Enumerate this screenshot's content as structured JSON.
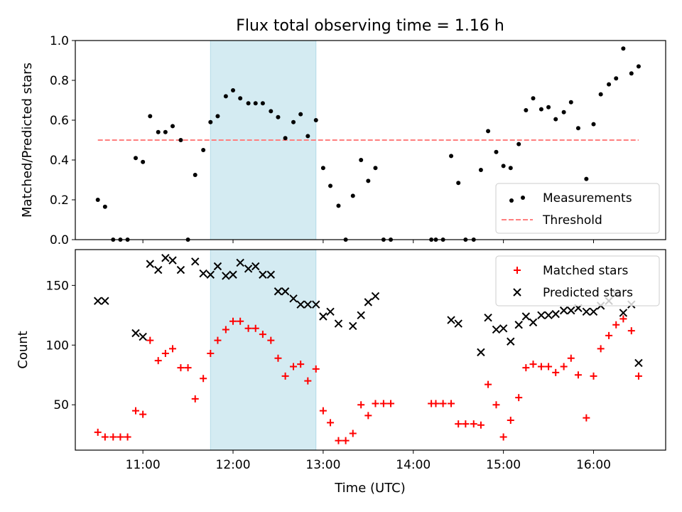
{
  "chart_data": [
    {
      "type": "scatter",
      "title": "Flux total observing time = 1.16 h",
      "xlabel": "",
      "ylabel": "Matched/Predicted stars",
      "xlim": [
        10.25,
        16.8
      ],
      "ylim": [
        0,
        1.0
      ],
      "yticks": [
        0.0,
        0.2,
        0.4,
        0.6,
        0.8,
        1.0
      ],
      "ytick_labels": [
        "0.0",
        "0.2",
        "0.4",
        "0.6",
        "0.8",
        "1.0"
      ],
      "shaded_span": {
        "x0": 11.75,
        "x1": 12.92,
        "color": "#add8e6"
      },
      "threshold": {
        "name": "Threshold",
        "y": 0.5,
        "x0": 10.5,
        "x1": 16.5,
        "color": "#ff7f7f"
      },
      "legend": {
        "position": "lower-right",
        "entries": [
          "Measurements",
          "Threshold"
        ]
      },
      "series": [
        {
          "name": "Measurements",
          "color": "#000000",
          "marker": "dot",
          "points": [
            [
              10.5,
              0.2
            ],
            [
              10.58,
              0.165
            ],
            [
              10.67,
              0.0
            ],
            [
              10.75,
              0.0
            ],
            [
              10.83,
              0.0
            ],
            [
              10.92,
              0.41
            ],
            [
              11.0,
              0.39
            ],
            [
              11.08,
              0.62
            ],
            [
              11.17,
              0.54
            ],
            [
              11.25,
              0.54
            ],
            [
              11.33,
              0.57
            ],
            [
              11.42,
              0.5
            ],
            [
              11.5,
              0.0
            ],
            [
              11.58,
              0.325
            ],
            [
              11.67,
              0.45
            ],
            [
              11.75,
              0.59
            ],
            [
              11.83,
              0.62
            ],
            [
              11.92,
              0.72
            ],
            [
              12.0,
              0.75
            ],
            [
              12.08,
              0.71
            ],
            [
              12.17,
              0.685
            ],
            [
              12.25,
              0.685
            ],
            [
              12.33,
              0.685
            ],
            [
              12.42,
              0.645
            ],
            [
              12.5,
              0.615
            ],
            [
              12.58,
              0.51
            ],
            [
              12.67,
              0.59
            ],
            [
              12.75,
              0.63
            ],
            [
              12.83,
              0.52
            ],
            [
              12.92,
              0.6
            ],
            [
              13.0,
              0.36
            ],
            [
              13.08,
              0.27
            ],
            [
              13.17,
              0.17
            ],
            [
              13.25,
              0.0
            ],
            [
              13.33,
              0.22
            ],
            [
              13.42,
              0.4
            ],
            [
              13.5,
              0.295
            ],
            [
              13.58,
              0.36
            ],
            [
              13.67,
              0.0
            ],
            [
              13.75,
              0.0
            ],
            [
              14.2,
              0.0
            ],
            [
              14.25,
              0.0
            ],
            [
              14.33,
              0.0
            ],
            [
              14.42,
              0.42
            ],
            [
              14.5,
              0.285
            ],
            [
              14.58,
              0.0
            ],
            [
              14.67,
              0.0
            ],
            [
              14.75,
              0.35
            ],
            [
              14.83,
              0.545
            ],
            [
              14.92,
              0.44
            ],
            [
              15.0,
              0.37
            ],
            [
              15.08,
              0.36
            ],
            [
              15.17,
              0.48
            ],
            [
              15.25,
              0.65
            ],
            [
              15.33,
              0.71
            ],
            [
              15.42,
              0.655
            ],
            [
              15.5,
              0.665
            ],
            [
              15.58,
              0.605
            ],
            [
              15.67,
              0.64
            ],
            [
              15.75,
              0.69
            ],
            [
              15.83,
              0.56
            ],
            [
              15.92,
              0.305
            ],
            [
              16.0,
              0.58
            ],
            [
              16.08,
              0.73
            ],
            [
              16.17,
              0.78
            ],
            [
              16.25,
              0.81
            ],
            [
              16.33,
              0.96
            ],
            [
              16.42,
              0.835
            ],
            [
              16.5,
              0.87
            ]
          ]
        }
      ]
    },
    {
      "type": "scatter",
      "title": "",
      "xlabel": "Time (UTC)",
      "ylabel": "Count",
      "xlim": [
        10.25,
        16.8
      ],
      "ylim": [
        12,
        180
      ],
      "xticks": [
        11,
        12,
        13,
        14,
        15,
        16
      ],
      "xtick_labels": [
        "11:00",
        "12:00",
        "13:00",
        "14:00",
        "15:00",
        "16:00"
      ],
      "yticks": [
        50,
        100,
        150
      ],
      "ytick_labels": [
        "50",
        "100",
        "150"
      ],
      "shaded_span": {
        "x0": 11.75,
        "x1": 12.92,
        "color": "#add8e6"
      },
      "legend": {
        "position": "top-right",
        "entries": [
          "Matched stars",
          "Predicted stars"
        ]
      },
      "series": [
        {
          "name": "Matched stars",
          "color": "#ff0000",
          "marker": "plus",
          "points": [
            [
              10.5,
              27
            ],
            [
              10.58,
              23
            ],
            [
              10.67,
              23
            ],
            [
              10.75,
              23
            ],
            [
              10.83,
              23
            ],
            [
              10.92,
              45
            ],
            [
              11.0,
              42
            ],
            [
              11.08,
              104
            ],
            [
              11.17,
              87
            ],
            [
              11.25,
              93
            ],
            [
              11.33,
              97
            ],
            [
              11.42,
              81
            ],
            [
              11.5,
              81
            ],
            [
              11.58,
              55
            ],
            [
              11.67,
              72
            ],
            [
              11.75,
              93
            ],
            [
              11.83,
              104
            ],
            [
              11.92,
              113
            ],
            [
              12.0,
              120
            ],
            [
              12.08,
              120
            ],
            [
              12.17,
              114
            ],
            [
              12.25,
              114
            ],
            [
              12.33,
              109
            ],
            [
              12.42,
              104
            ],
            [
              12.5,
              89
            ],
            [
              12.58,
              74
            ],
            [
              12.67,
              82
            ],
            [
              12.75,
              84
            ],
            [
              12.83,
              70
            ],
            [
              12.92,
              80
            ],
            [
              13.0,
              45
            ],
            [
              13.08,
              35
            ],
            [
              13.17,
              20
            ],
            [
              13.25,
              20
            ],
            [
              13.33,
              26
            ],
            [
              13.42,
              50
            ],
            [
              13.5,
              41
            ],
            [
              13.58,
              51
            ],
            [
              13.67,
              51
            ],
            [
              13.75,
              51
            ],
            [
              14.2,
              51
            ],
            [
              14.25,
              51
            ],
            [
              14.33,
              51
            ],
            [
              14.42,
              51
            ],
            [
              14.5,
              34
            ],
            [
              14.58,
              34
            ],
            [
              14.67,
              34
            ],
            [
              14.75,
              33
            ],
            [
              14.83,
              67
            ],
            [
              14.92,
              50
            ],
            [
              15.0,
              23
            ],
            [
              15.08,
              37
            ],
            [
              15.17,
              56
            ],
            [
              15.25,
              81
            ],
            [
              15.33,
              84
            ],
            [
              15.42,
              82
            ],
            [
              15.5,
              82
            ],
            [
              15.58,
              77
            ],
            [
              15.67,
              82
            ],
            [
              15.75,
              89
            ],
            [
              15.83,
              75
            ],
            [
              15.92,
              39
            ],
            [
              16.0,
              74
            ],
            [
              16.08,
              97
            ],
            [
              16.17,
              108
            ],
            [
              16.25,
              117
            ],
            [
              16.33,
              122
            ],
            [
              16.42,
              112
            ],
            [
              16.5,
              74
            ]
          ]
        },
        {
          "name": "Predicted stars",
          "color": "#000000",
          "marker": "x",
          "points": [
            [
              10.5,
              137
            ],
            [
              10.58,
              137
            ],
            [
              10.92,
              110
            ],
            [
              11.0,
              107
            ],
            [
              11.08,
              168
            ],
            [
              11.17,
              163
            ],
            [
              11.25,
              173
            ],
            [
              11.33,
              171
            ],
            [
              11.42,
              163
            ],
            [
              11.58,
              170
            ],
            [
              11.67,
              160
            ],
            [
              11.75,
              159
            ],
            [
              11.83,
              166
            ],
            [
              11.92,
              158
            ],
            [
              12.0,
              159
            ],
            [
              12.08,
              169
            ],
            [
              12.17,
              164
            ],
            [
              12.25,
              166
            ],
            [
              12.33,
              159
            ],
            [
              12.42,
              159
            ],
            [
              12.5,
              145
            ],
            [
              12.58,
              145
            ],
            [
              12.67,
              139
            ],
            [
              12.75,
              134
            ],
            [
              12.83,
              134
            ],
            [
              12.92,
              134
            ],
            [
              13.0,
              124
            ],
            [
              13.08,
              128
            ],
            [
              13.17,
              118
            ],
            [
              13.33,
              116
            ],
            [
              13.42,
              125
            ],
            [
              13.5,
              136
            ],
            [
              13.58,
              141
            ],
            [
              14.42,
              121
            ],
            [
              14.5,
              118
            ],
            [
              14.75,
              94
            ],
            [
              14.83,
              123
            ],
            [
              14.92,
              113
            ],
            [
              15.0,
              114
            ],
            [
              15.08,
              103
            ],
            [
              15.17,
              117
            ],
            [
              15.25,
              124
            ],
            [
              15.33,
              119
            ],
            [
              15.42,
              125
            ],
            [
              15.5,
              125
            ],
            [
              15.58,
              126
            ],
            [
              15.67,
              129
            ],
            [
              15.75,
              129
            ],
            [
              15.83,
              131
            ],
            [
              15.92,
              128
            ],
            [
              16.0,
              128
            ],
            [
              16.08,
              133
            ],
            [
              16.17,
              137
            ],
            [
              16.25,
              143
            ],
            [
              16.33,
              127
            ],
            [
              16.42,
              134
            ],
            [
              16.5,
              85
            ]
          ]
        }
      ]
    }
  ]
}
